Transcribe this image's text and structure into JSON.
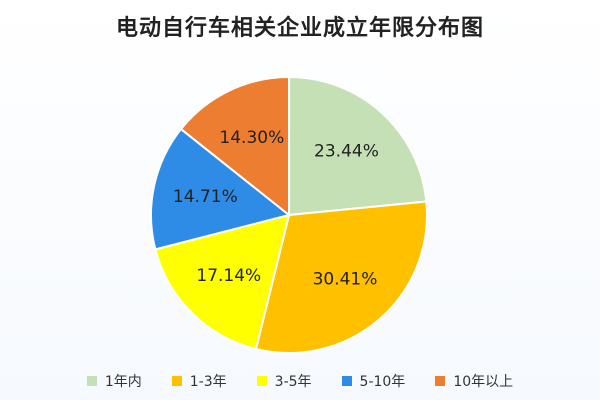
{
  "chart_data": {
    "type": "pie",
    "title": "电动自行车相关企业成立年限分布图",
    "slices": [
      {
        "label": "1年内",
        "value": 23.44,
        "display": "23.44%",
        "color": "#c5e0b4"
      },
      {
        "label": "1-3年",
        "value": 30.41,
        "display": "30.41%",
        "color": "#ffc000"
      },
      {
        "label": "3-5年",
        "value": 17.14,
        "display": "17.14%",
        "color": "#ffff00"
      },
      {
        "label": "5-10年",
        "value": 14.71,
        "display": "14.71%",
        "color": "#2e8ce6"
      },
      {
        "label": "10年以上",
        "value": 14.3,
        "display": "14.30%",
        "color": "#ed7d31"
      }
    ],
    "legend_position": "bottom",
    "start_angle_deg": 0,
    "direction": "clockwise"
  }
}
